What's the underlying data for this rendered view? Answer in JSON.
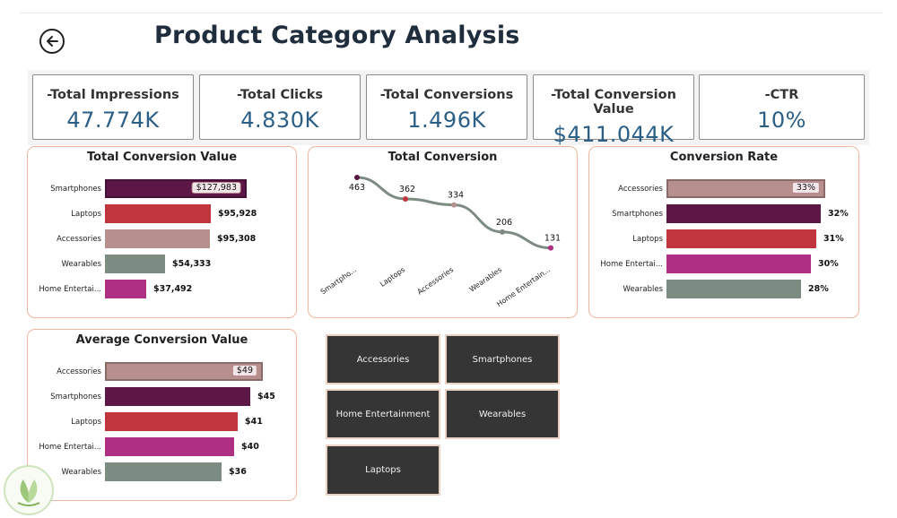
{
  "page": {
    "title": "Product Category Analysis",
    "accent": "#2b5f86"
  },
  "kpis": [
    {
      "label": "-Total Impressions",
      "value": "47.774K"
    },
    {
      "label": "-Total Clicks",
      "value": "4.830K"
    },
    {
      "label": "-Total Conversions",
      "value": "1.496K"
    },
    {
      "label": "-Total Conversion Value",
      "value": "$411.044K"
    },
    {
      "label": "-CTR",
      "value": "10%"
    }
  ],
  "category_colors": {
    "Smartphones": "#5c1746",
    "Laptops": "#c1363d",
    "Accessories": "#b78f8c",
    "Wearables": "#7d8c82",
    "Home Entertainment": "#ae2f83"
  },
  "chart_data": [
    {
      "type": "bar",
      "title": "Total Conversion Value",
      "categories": [
        "Smartphones",
        "Laptops",
        "Accessories",
        "Wearables",
        "Home Entertai..."
      ],
      "values": [
        127983,
        95928,
        95308,
        54333,
        37492
      ],
      "labels": [
        "$127,983",
        "$95,928",
        "$95,308",
        "$54,333",
        "$37,492"
      ],
      "xlim": [
        0,
        130000
      ]
    },
    {
      "type": "line",
      "title": "Total Conversion",
      "categories": [
        "Smartpho...",
        "Laptops",
        "Accessories",
        "Wearables",
        "Home Entertain..."
      ],
      "values": [
        463,
        362,
        334,
        206,
        131
      ],
      "ylim": [
        100,
        480
      ]
    },
    {
      "type": "bar",
      "title": "Conversion Rate",
      "categories": [
        "Accessories",
        "Smartphones",
        "Laptops",
        "Home Entertai...",
        "Wearables"
      ],
      "values": [
        33,
        32,
        31,
        30,
        28
      ],
      "labels": [
        "33%",
        "32%",
        "31%",
        "30%",
        "28%"
      ],
      "xlim": [
        0,
        33.5
      ]
    },
    {
      "type": "bar",
      "title": "Average Conversion Value",
      "categories": [
        "Accessories",
        "Smartphones",
        "Laptops",
        "Home Entertai...",
        "Wearables"
      ],
      "values": [
        49,
        45,
        41,
        40,
        36
      ],
      "labels": [
        "$49",
        "$45",
        "$41",
        "$40",
        "$36"
      ],
      "xlim": [
        0,
        50
      ]
    }
  ],
  "slicer": {
    "items": [
      "Accessories",
      "Smartphones",
      "Home Entertainment",
      "Wearables",
      "Laptops"
    ]
  }
}
